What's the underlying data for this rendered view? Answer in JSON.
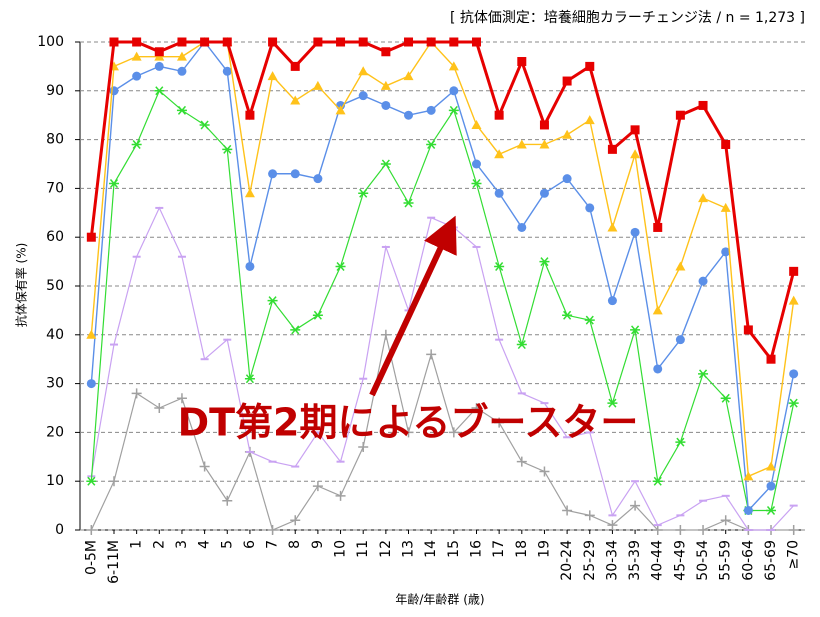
{
  "chart_data": {
    "type": "line",
    "subtitle": "[ 抗体価測定：培養細胞カラーチェンジ法 / n = 1,273 ]",
    "ylabel": "抗体保有率 (%)",
    "xlabel": "年齢/年齢群 (歳)",
    "annotation": "DT第2期によるブースター",
    "categories": [
      "0-5M",
      "6-11M",
      "1",
      "2",
      "3",
      "4",
      "5",
      "6",
      "7",
      "8",
      "9",
      "10",
      "11",
      "12",
      "13",
      "14",
      "15",
      "16",
      "17",
      "18",
      "19",
      "20-24",
      "25-29",
      "30-34",
      "35-39",
      "40-44",
      "45-49",
      "50-54",
      "55-59",
      "60-64",
      "65-69",
      "≥70"
    ],
    "ylim": [
      0,
      100
    ],
    "yticks": [
      0,
      10,
      20,
      30,
      40,
      50,
      60,
      70,
      80,
      90,
      100
    ],
    "grid": true,
    "series": [
      {
        "color": "#a0a0a0",
        "marker": "plus",
        "width": 1.2,
        "values": [
          0,
          10,
          28,
          25,
          27,
          13,
          6,
          16,
          0,
          2,
          9,
          7,
          17,
          40,
          20,
          36,
          20,
          25,
          22,
          14,
          12,
          4,
          3,
          1,
          5,
          0,
          0,
          0,
          2,
          0,
          0,
          0
        ]
      },
      {
        "color": "#c9a2f2",
        "marker": "dash",
        "width": 1.2,
        "values": [
          11,
          38,
          56,
          66,
          56,
          35,
          39,
          16,
          14,
          13,
          20,
          14,
          31,
          58,
          45,
          64,
          62,
          58,
          39,
          28,
          26,
          19,
          20,
          3,
          10,
          1,
          3,
          6,
          7,
          0,
          0,
          5
        ]
      },
      {
        "color": "#33dd33",
        "marker": "star",
        "width": 1.2,
        "values": [
          10,
          71,
          79,
          90,
          86,
          83,
          78,
          31,
          47,
          41,
          44,
          54,
          69,
          75,
          67,
          79,
          86,
          71,
          54,
          38,
          55,
          44,
          43,
          26,
          41,
          10,
          18,
          32,
          27,
          4,
          4,
          26
        ]
      },
      {
        "color": "#5b8fe8",
        "marker": "circle",
        "width": 1.4,
        "values": [
          30,
          90,
          93,
          95,
          94,
          100,
          94,
          54,
          73,
          73,
          72,
          87,
          89,
          87,
          85,
          86,
          90,
          75,
          69,
          62,
          69,
          72,
          66,
          47,
          61,
          33,
          39,
          51,
          57,
          4,
          9,
          32
        ]
      },
      {
        "color": "#ffc21a",
        "marker": "triangle",
        "width": 1.4,
        "values": [
          40,
          95,
          97,
          97,
          97,
          100,
          100,
          69,
          93,
          88,
          91,
          86,
          94,
          91,
          93,
          100,
          95,
          83,
          77,
          79,
          79,
          81,
          84,
          62,
          77,
          45,
          54,
          68,
          66,
          11,
          13,
          47
        ]
      },
      {
        "color": "#e60000",
        "marker": "square",
        "width": 3,
        "values": [
          60,
          100,
          100,
          98,
          100,
          100,
          100,
          85,
          100,
          95,
          100,
          100,
          100,
          98,
          100,
          100,
          100,
          100,
          85,
          96,
          83,
          92,
          95,
          78,
          82,
          62,
          85,
          87,
          79,
          41,
          35,
          53
        ]
      }
    ]
  }
}
